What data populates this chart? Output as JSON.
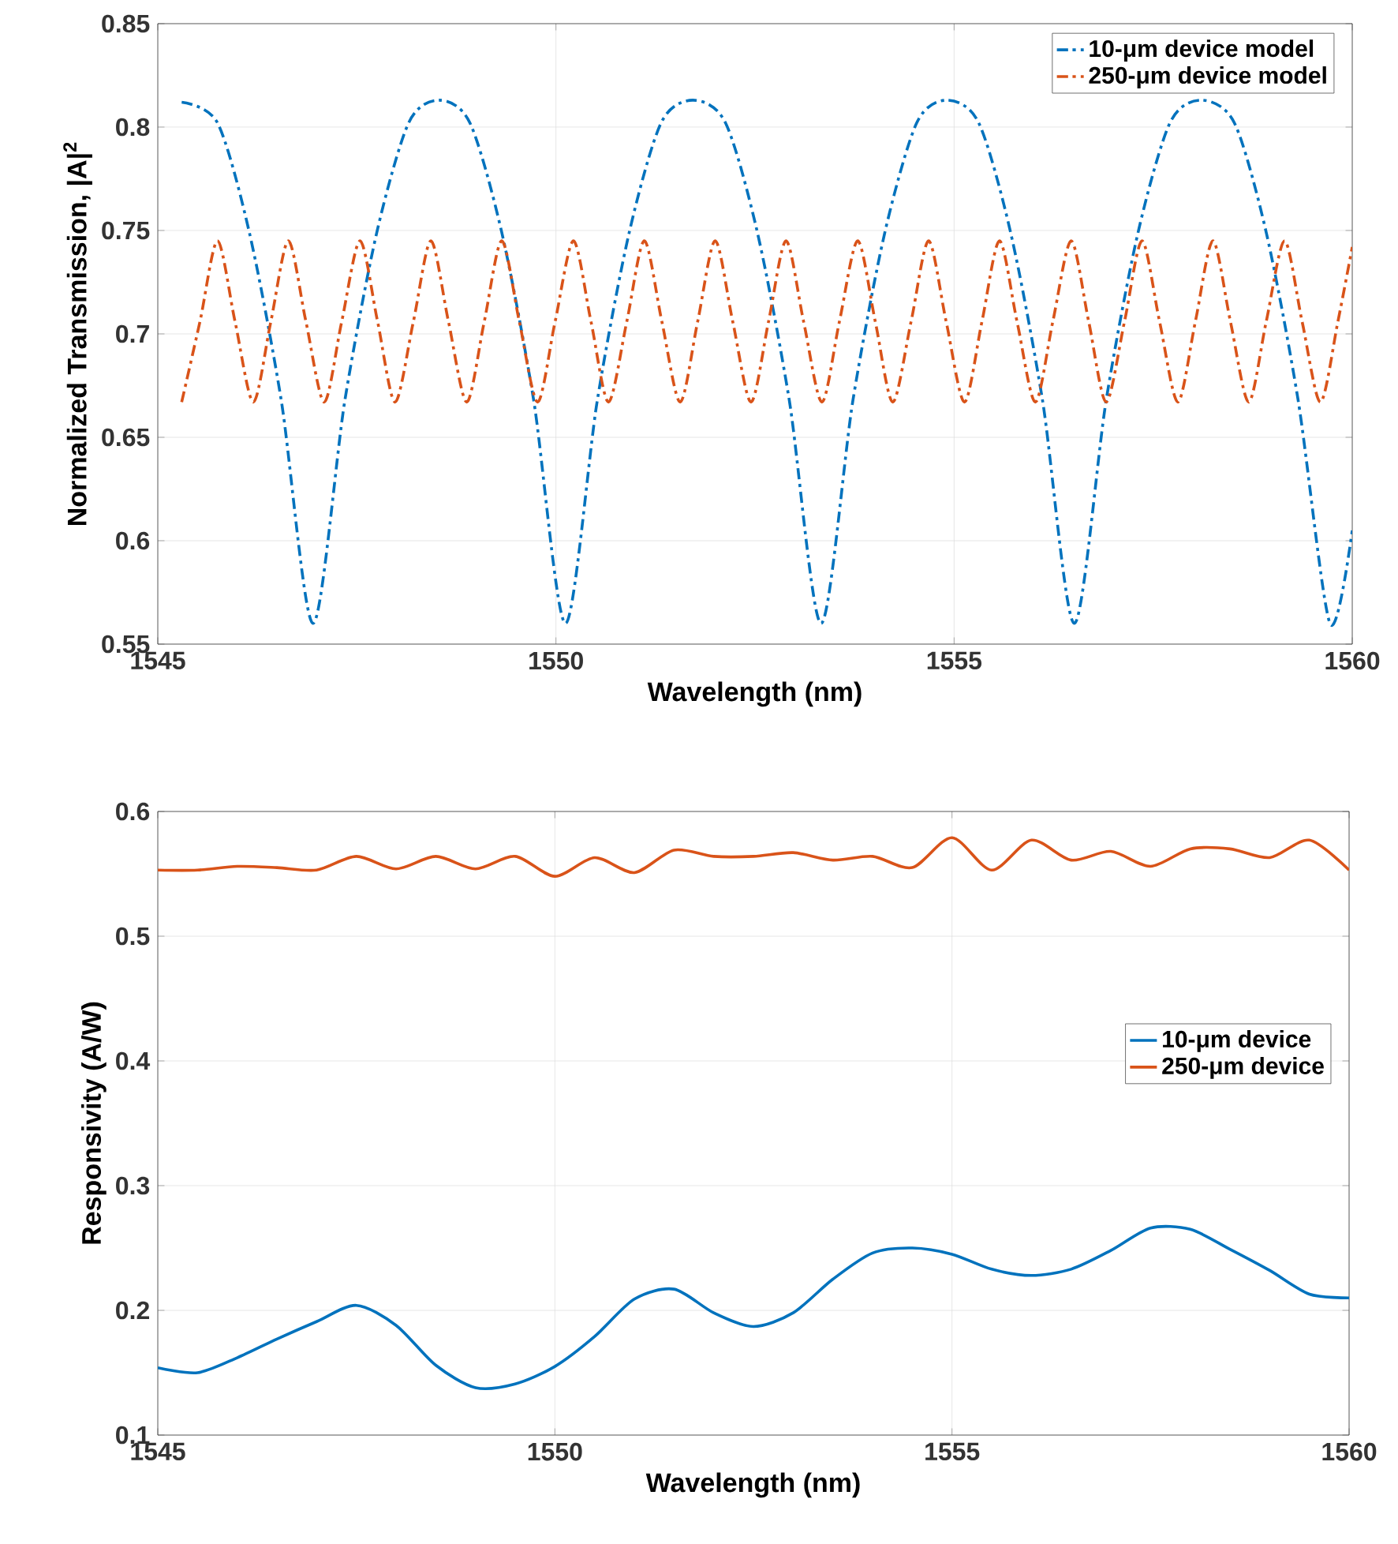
{
  "chart_data": [
    {
      "type": "line",
      "xlabel": "Wavelength (nm)",
      "ylabel": "Normalized Transmission, |A|$^{2}$",
      "xlim": [
        1545,
        1560
      ],
      "ylim": [
        0.55,
        0.85
      ],
      "xticks": [
        1545,
        1550,
        1555,
        1560
      ],
      "yticks": [
        0.55,
        0.6,
        0.65,
        0.7,
        0.75,
        0.8,
        0.85
      ],
      "grid": true,
      "legend": "top right",
      "line_style": "dashdot",
      "series": [
        {
          "name": "10-μm device model",
          "color": "#0072bd",
          "x": [
            1545.3,
            1545.75,
            1546.15,
            1546.55,
            1546.95,
            1547.35,
            1547.75,
            1548.15,
            1548.53,
            1548.92,
            1549.32,
            1549.72,
            1550.12,
            1550.52,
            1550.92,
            1551.32,
            1551.72,
            1552.13,
            1552.53,
            1552.93,
            1553.33,
            1553.73,
            1554.13,
            1554.53,
            1554.91,
            1555.31,
            1555.71,
            1556.11,
            1556.51,
            1556.91,
            1557.31,
            1557.71,
            1558.1,
            1558.52,
            1558.92,
            1559.32,
            1559.72,
            1560.0
          ],
          "values": [
            0.812,
            0.802,
            0.749,
            0.668,
            0.56,
            0.668,
            0.749,
            0.802,
            0.813,
            0.802,
            0.749,
            0.668,
            0.56,
            0.668,
            0.749,
            0.802,
            0.813,
            0.802,
            0.749,
            0.668,
            0.56,
            0.668,
            0.749,
            0.802,
            0.813,
            0.802,
            0.749,
            0.668,
            0.56,
            0.668,
            0.749,
            0.802,
            0.813,
            0.802,
            0.749,
            0.668,
            0.56,
            0.605
          ]
        },
        {
          "name": "250-μm device model",
          "color": "#d95319",
          "x": [
            1545.3,
            1545.53,
            1545.75,
            1545.97,
            1546.2,
            1546.42,
            1546.64,
            1546.86,
            1547.09,
            1547.31,
            1547.54,
            1547.76,
            1547.98,
            1548.21,
            1548.43,
            1548.65,
            1548.88,
            1549.1,
            1549.32,
            1549.54,
            1549.77,
            1549.99,
            1550.22,
            1550.44,
            1550.66,
            1550.89,
            1551.11,
            1551.33,
            1551.56,
            1551.78,
            1552.0,
            1552.22,
            1552.45,
            1552.67,
            1552.89,
            1553.11,
            1553.34,
            1553.56,
            1553.79,
            1554.01,
            1554.23,
            1554.46,
            1554.68,
            1554.9,
            1555.13,
            1555.35,
            1555.57,
            1555.79,
            1556.02,
            1556.24,
            1556.47,
            1556.69,
            1556.91,
            1557.14,
            1557.36,
            1557.58,
            1557.81,
            1558.03,
            1558.25,
            1558.47,
            1558.7,
            1558.92,
            1559.15,
            1559.37,
            1559.6,
            1559.82,
            1560.0
          ],
          "values": [
            0.667,
            0.706,
            0.745,
            0.706,
            0.667,
            0.706,
            0.745,
            0.706,
            0.667,
            0.706,
            0.745,
            0.706,
            0.667,
            0.706,
            0.745,
            0.706,
            0.667,
            0.706,
            0.745,
            0.706,
            0.667,
            0.706,
            0.745,
            0.706,
            0.667,
            0.706,
            0.745,
            0.706,
            0.667,
            0.706,
            0.745,
            0.706,
            0.667,
            0.706,
            0.745,
            0.706,
            0.667,
            0.706,
            0.745,
            0.706,
            0.667,
            0.706,
            0.745,
            0.706,
            0.667,
            0.706,
            0.745,
            0.706,
            0.667,
            0.706,
            0.745,
            0.706,
            0.667,
            0.706,
            0.745,
            0.706,
            0.667,
            0.706,
            0.745,
            0.706,
            0.667,
            0.706,
            0.745,
            0.706,
            0.667,
            0.706,
            0.742
          ]
        }
      ]
    },
    {
      "type": "line",
      "xlabel": "Wavelength (nm)",
      "ylabel": "Responsivity (A/W)",
      "xlim": [
        1545,
        1560
      ],
      "ylim": [
        0.1,
        0.6
      ],
      "xticks": [
        1545,
        1550,
        1555,
        1560
      ],
      "yticks": [
        0.1,
        0.2,
        0.3,
        0.4,
        0.5,
        0.6
      ],
      "grid": true,
      "legend": "right",
      "line_style": "solid",
      "x": [
        1545,
        1545.5,
        1546,
        1546.5,
        1547,
        1547.5,
        1548,
        1548.5,
        1549,
        1549.5,
        1550,
        1550.5,
        1551,
        1551.5,
        1552,
        1552.5,
        1553,
        1553.5,
        1554,
        1554.5,
        1555,
        1555.5,
        1556,
        1556.5,
        1557,
        1557.5,
        1558,
        1558.5,
        1559,
        1559.5,
        1560
      ],
      "series": [
        {
          "name": "10-μm device",
          "color": "#0072bd",
          "values": [
            0.154,
            0.15,
            0.162,
            0.177,
            0.191,
            0.204,
            0.188,
            0.156,
            0.138,
            0.141,
            0.155,
            0.179,
            0.209,
            0.217,
            0.198,
            0.187,
            0.198,
            0.225,
            0.246,
            0.25,
            0.245,
            0.233,
            0.228,
            0.233,
            0.248,
            0.266,
            0.265,
            0.249,
            0.232,
            0.213,
            0.21
          ]
        },
        {
          "name": "250-μm device",
          "color": "#d95319",
          "values": [
            0.553,
            0.553,
            0.556,
            0.555,
            0.553,
            0.564,
            0.554,
            0.564,
            0.554,
            0.564,
            0.548,
            0.563,
            0.551,
            0.569,
            0.564,
            0.564,
            0.567,
            0.561,
            0.564,
            0.555,
            0.579,
            0.553,
            0.577,
            0.561,
            0.568,
            0.556,
            0.57,
            0.57,
            0.563,
            0.577,
            0.553
          ]
        }
      ]
    }
  ]
}
